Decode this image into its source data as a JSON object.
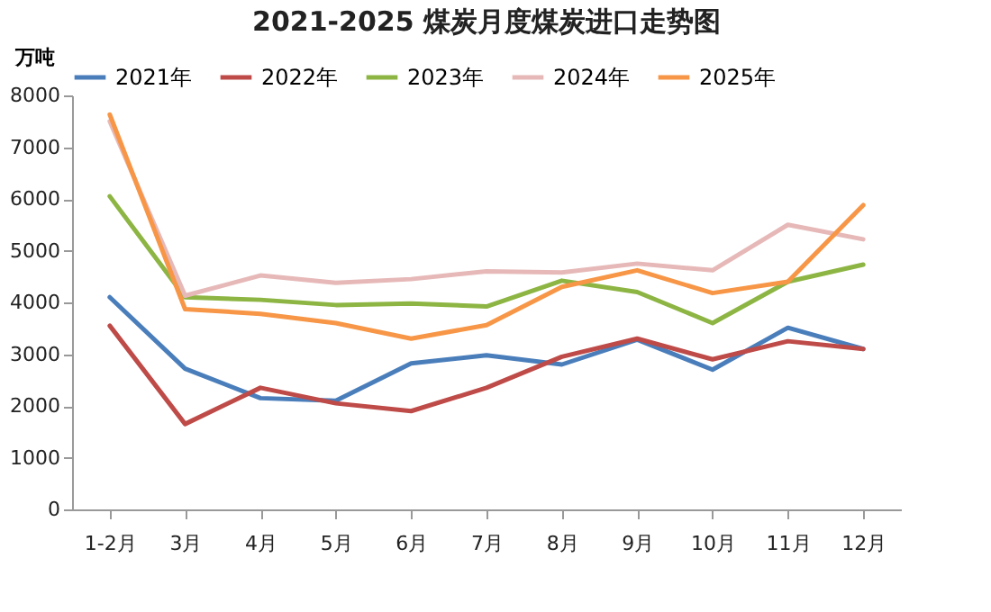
{
  "chart_data": {
    "type": "line",
    "title": "2021-2025 煤炭月度煤炭进口走势图",
    "ylabel": "万吨",
    "categories": [
      "1-2月",
      "3月",
      "4月",
      "5月",
      "6月",
      "7月",
      "8月",
      "9月",
      "10月",
      "11月",
      "12月"
    ],
    "series": [
      {
        "name": "2021年",
        "color": "#4a7ebb",
        "values": [
          4100,
          2720,
          2150,
          2100,
          2820,
          2980,
          2800,
          3280,
          2700,
          3510,
          3100
        ]
      },
      {
        "name": "2022年",
        "color": "#be4b48",
        "values": [
          3550,
          1650,
          2350,
          2050,
          1900,
          2350,
          2950,
          3300,
          2900,
          3250,
          3100
        ]
      },
      {
        "name": "2023年",
        "color": "#8db543",
        "values": [
          6050,
          4100,
          4050,
          3950,
          3980,
          3920,
          4420,
          4200,
          3600,
          4400,
          4730
        ]
      },
      {
        "name": "2024年",
        "color": "#e6b9b8",
        "values": [
          7500,
          4130,
          4520,
          4380,
          4450,
          4600,
          4580,
          4750,
          4620,
          5500,
          5220
        ]
      },
      {
        "name": "2025年",
        "color": "#f79646",
        "values": [
          7630,
          3870,
          3780,
          3600,
          3300,
          3560,
          4300,
          4620,
          4180,
          4400,
          5880
        ]
      }
    ],
    "ylim": [
      0,
      8000
    ],
    "yticks": [
      0,
      1000,
      2000,
      3000,
      4000,
      5000,
      6000,
      7000,
      8000
    ],
    "grid": false,
    "legend": "top",
    "marker": "none",
    "line_style": "solid"
  }
}
